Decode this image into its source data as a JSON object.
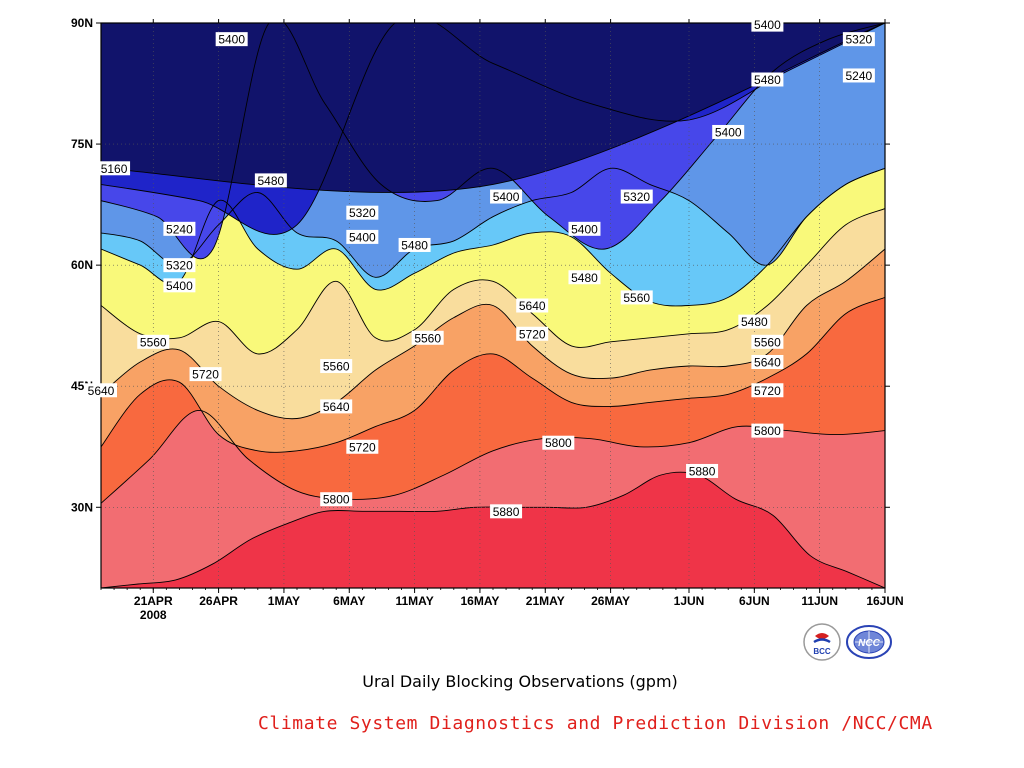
{
  "chart_data": {
    "type": "heatmap",
    "title": "Ural Daily Blocking Observations (gpm)",
    "subtitle": "",
    "xlabel": "",
    "ylabel": "",
    "x": [
      "2008-04-17",
      "2008-04-21",
      "2008-04-26",
      "2008-05-01",
      "2008-05-06",
      "2008-05-11",
      "2008-05-16",
      "2008-05-21",
      "2008-05-26",
      "2008-06-01",
      "2008-06-06",
      "2008-06-11",
      "2008-06-16"
    ],
    "x_tick_labels": [
      "21APR",
      "26APR",
      "1MAY",
      "6MAY",
      "11MAY",
      "16MAY",
      "21MAY",
      "26MAY",
      "1JUN",
      "6JUN",
      "11JUN",
      "16JUN"
    ],
    "x_year_label": "2008",
    "y_tick_labels": [
      "30N",
      "45N",
      "60N",
      "75N",
      "90N"
    ],
    "ylim": [
      20,
      90
    ],
    "contour_levels": [
      5160,
      5240,
      5320,
      5400,
      5480,
      5560,
      5640,
      5720,
      5800,
      5880
    ],
    "contours": [
      {
        "level": 5880,
        "lat": [
          20,
          20.5,
          21,
          23,
          26,
          28,
          29.5,
          29.5,
          29.5,
          29.5,
          30,
          30,
          30,
          30,
          31.5,
          34,
          34,
          31,
          29,
          24,
          22,
          20
        ]
      },
      {
        "level": 5800,
        "lat": [
          30.5,
          36,
          42,
          36,
          32,
          31,
          31.5,
          34,
          37,
          38.5,
          38.5,
          37.5,
          38,
          40,
          39.5,
          39,
          39.5
        ]
      },
      {
        "level": 5720,
        "lat": [
          37.5,
          44,
          45.5,
          39,
          37,
          37,
          38,
          40,
          42,
          47,
          49,
          46,
          43,
          42.5,
          43,
          43.5,
          44,
          46,
          49,
          54,
          56
        ]
      },
      {
        "level": 5640,
        "lat": [
          44,
          48,
          49.5,
          45,
          42,
          41,
          43,
          47,
          50,
          53.5,
          55,
          50,
          46.5,
          46,
          47,
          47.5,
          47.5,
          49,
          55,
          58,
          62
        ]
      },
      {
        "level": 5560,
        "lat": [
          55,
          51.5,
          51,
          53,
          49,
          52,
          58,
          51,
          52,
          57,
          58,
          54,
          50,
          50.5,
          51,
          51.5,
          52,
          55,
          60,
          65,
          67
        ]
      },
      {
        "level": 5480,
        "lat": [
          62,
          60,
          58,
          68,
          62,
          59.5,
          62,
          57,
          59,
          61.5,
          62.5,
          64,
          63.5,
          59,
          55.5,
          55,
          56,
          60,
          66,
          70,
          72
        ]
      },
      {
        "level": 5400,
        "lat": [
          64,
          63,
          60,
          65,
          69,
          64,
          63,
          58.5,
          62,
          63,
          66,
          68,
          69,
          72,
          70,
          68,
          64,
          60,
          66,
          70,
          72
        ]
      },
      {
        "level": 5320,
        "lat": [
          68,
          66,
          62,
          90,
          80,
          70,
          68,
          72,
          66,
          62,
          68,
          76,
          84,
          88,
          90
        ]
      },
      {
        "level": 5240,
        "lat": [
          70,
          68,
          65,
          90,
          85,
          80,
          78,
          84,
          90
        ]
      },
      {
        "level": 5160,
        "lat": [
          72,
          70,
          90
        ]
      }
    ],
    "contour_labels": [
      {
        "value": "5400",
        "date": "2008-04-27",
        "lat": 88
      },
      {
        "value": "5160",
        "date": "2008-04-18",
        "lat": 72
      },
      {
        "value": "5480",
        "date": "2008-04-30",
        "lat": 70.5
      },
      {
        "value": "5240",
        "date": "2008-04-23",
        "lat": 64.5
      },
      {
        "value": "5320",
        "date": "2008-05-07",
        "lat": 66.5
      },
      {
        "value": "5400",
        "date": "2008-05-07",
        "lat": 63.5
      },
      {
        "value": "5480",
        "date": "2008-05-11",
        "lat": 62.5
      },
      {
        "value": "5320",
        "date": "2008-04-23",
        "lat": 60
      },
      {
        "value": "5400",
        "date": "2008-04-23",
        "lat": 57.5
      },
      {
        "value": "5560",
        "date": "2008-04-21",
        "lat": 50.5
      },
      {
        "value": "5560",
        "date": "2008-05-12",
        "lat": 51
      },
      {
        "value": "5560",
        "date": "2008-05-05",
        "lat": 47.5
      },
      {
        "value": "5640",
        "date": "2008-04-17",
        "lat": 44.5
      },
      {
        "value": "5720",
        "date": "2008-04-25",
        "lat": 46.5
      },
      {
        "value": "5640",
        "date": "2008-05-05",
        "lat": 42.5
      },
      {
        "value": "5720",
        "date": "2008-05-07",
        "lat": 37.5
      },
      {
        "value": "5800",
        "date": "2008-05-05",
        "lat": 31
      },
      {
        "value": "5880",
        "date": "2008-05-18",
        "lat": 29.5
      },
      {
        "value": "5800",
        "date": "2008-05-22",
        "lat": 38
      },
      {
        "value": "5880",
        "date": "2008-06-02",
        "lat": 34.5
      },
      {
        "value": "5800",
        "date": "2008-06-07",
        "lat": 39.5
      },
      {
        "value": "5720",
        "date": "2008-06-07",
        "lat": 44.5
      },
      {
        "value": "5640",
        "date": "2008-06-07",
        "lat": 48
      },
      {
        "value": "5560",
        "date": "2008-06-07",
        "lat": 50.5
      },
      {
        "value": "5480",
        "date": "2008-06-06",
        "lat": 53
      },
      {
        "value": "5640",
        "date": "2008-05-20",
        "lat": 55
      },
      {
        "value": "5720",
        "date": "2008-05-20",
        "lat": 51.5
      },
      {
        "value": "5560",
        "date": "2008-05-28",
        "lat": 56
      },
      {
        "value": "5480",
        "date": "2008-05-24",
        "lat": 58.5
      },
      {
        "value": "5400",
        "date": "2008-05-24",
        "lat": 64.5
      },
      {
        "value": "5400",
        "date": "2008-05-18",
        "lat": 68.5
      },
      {
        "value": "5320",
        "date": "2008-05-28",
        "lat": 68.5
      },
      {
        "value": "5400",
        "date": "2008-06-04",
        "lat": 76.5
      },
      {
        "value": "5480",
        "date": "2008-06-07",
        "lat": 83
      },
      {
        "value": "5400",
        "date": "2008-06-07",
        "lat": 89.8
      },
      {
        "value": "5320",
        "date": "2008-06-14",
        "lat": 88
      },
      {
        "value": "5240",
        "date": "2008-06-14",
        "lat": 83.5
      }
    ],
    "grid": true
  },
  "colors": {
    "5160": "#11136b",
    "5240": "#1f24c9",
    "5320": "#4747ea",
    "5400": "#5f96e8",
    "5480": "#67c8f8",
    "5560": "#f9f97a",
    "5640": "#f9dd9d",
    "5720": "#f8a265",
    "5800": "#f8693f",
    "5880": "#f26d72",
    "above": "#ef3448"
  },
  "footer_text": "Climate System Diagnostics and Prediction Division /NCC/CMA",
  "logos": [
    {
      "icon": "bcc-logo",
      "text": "BCC"
    },
    {
      "icon": "ncc-logo",
      "text": "NCC"
    }
  ]
}
